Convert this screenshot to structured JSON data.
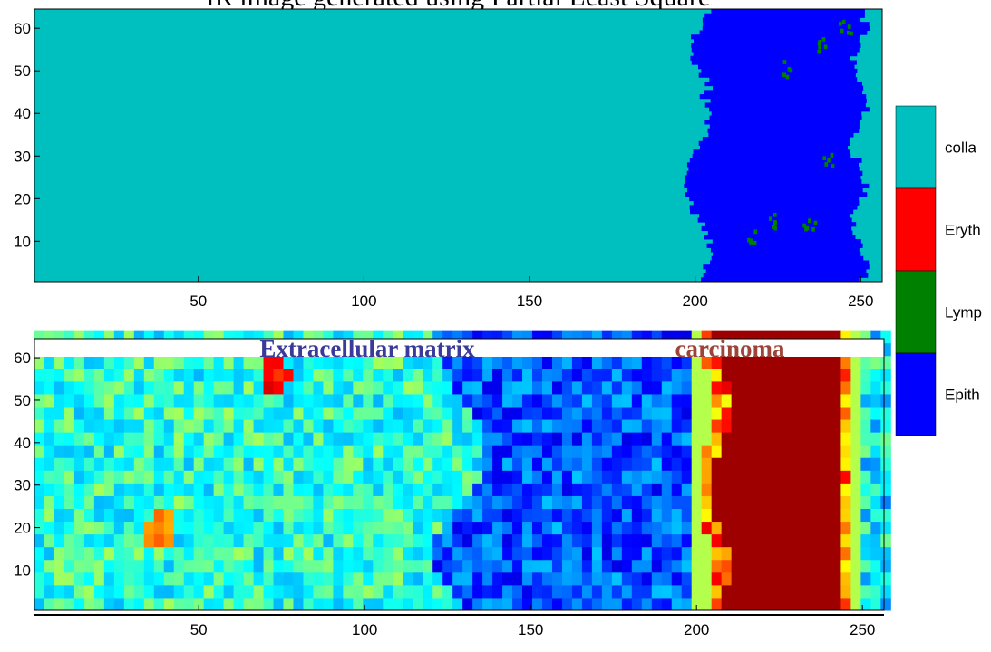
{
  "chart_data": [
    {
      "type": "image",
      "title": "IR image generated using Partial Least Square",
      "xlim": [
        0.5,
        256.5
      ],
      "ylim": [
        0.5,
        64.5
      ],
      "xticks": [
        50,
        100,
        150,
        200,
        250
      ],
      "yticks": [
        10,
        20,
        30,
        40,
        50,
        60
      ],
      "legend": {
        "labels": [
          "colla",
          "Eryth",
          "Lymp",
          "Epith"
        ],
        "colors": [
          "#00bfbf",
          "#ff0000",
          "#008000",
          "#0000ff"
        ]
      }
    },
    {
      "type": "heatmap",
      "xlim": [
        0.5,
        256.5
      ],
      "ylim": [
        0.5,
        64.5
      ],
      "xticks": [
        50,
        100,
        150,
        200,
        250
      ],
      "yticks": [
        10,
        20,
        30,
        40,
        50,
        60
      ],
      "annotations": [
        {
          "text": "Extracellular matrix",
          "color": "#3a3a9a"
        },
        {
          "text": "carcinoma",
          "color": "#9e4338"
        }
      ]
    }
  ]
}
